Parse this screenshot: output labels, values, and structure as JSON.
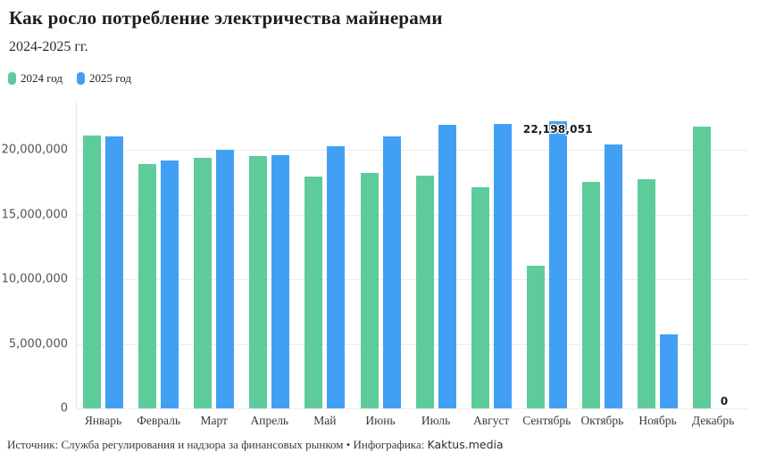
{
  "header": {
    "title": "Как росло потребление электричества майнерами",
    "subtitle": "2024-2025 гг."
  },
  "legend": [
    {
      "label": "2024 год",
      "color": "#5ecb9b"
    },
    {
      "label": "2025 год",
      "color": "#42a0f4"
    }
  ],
  "chart_data": {
    "type": "bar",
    "title": "Как росло потребление электричества майнерами",
    "subtitle": "2024-2025 гг.",
    "categories": [
      "Январь",
      "Февраль",
      "Март",
      "Апрель",
      "Май",
      "Июнь",
      "Июль",
      "Август",
      "Сентябрь",
      "Октябрь",
      "Ноябрь",
      "Декабрь"
    ],
    "series": [
      {
        "name": "2024 год",
        "color": "#5ecb9b",
        "values": [
          21100000,
          18900000,
          19400000,
          19500000,
          17900000,
          18200000,
          18000000,
          17100000,
          11000000,
          17500000,
          17700000,
          21800000
        ]
      },
      {
        "name": "2025 год",
        "color": "#42a0f4",
        "values": [
          21000000,
          19200000,
          20000000,
          19600000,
          20300000,
          21000000,
          21900000,
          22000000,
          22198051,
          20400000,
          5700000,
          0
        ]
      }
    ],
    "ylim": [
      0,
      23740000
    ],
    "yticks": [
      0,
      5000000,
      10000000,
      15000000,
      20000000
    ],
    "ytick_labels": [
      "0",
      "5,000,000",
      "10,000,000",
      "15,000,000",
      "20,000,000"
    ],
    "grid": true,
    "legend_position": "top-left",
    "annotations": [
      {
        "series": "2025 год",
        "category": "Сентябрь",
        "text": "22,198,051",
        "placement": "on-bar"
      },
      {
        "series": "2025 год",
        "category": "Декабрь",
        "text": "0",
        "placement": "above-baseline"
      }
    ]
  },
  "footer": {
    "source": "Источник: Служба регулирования и надзора за финансовых рынком • Инфографика: ",
    "brand": "Kaktus.media"
  }
}
